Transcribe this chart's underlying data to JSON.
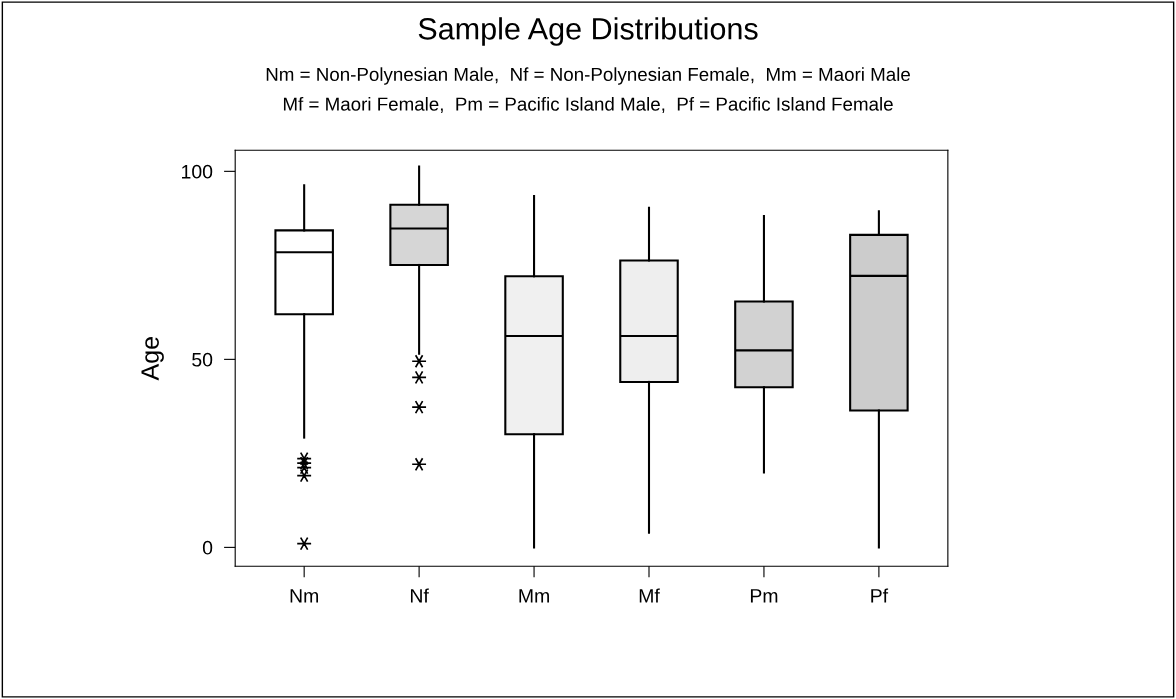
{
  "chart_data": {
    "type": "box",
    "title": "Sample Age Distributions",
    "subtitle": "Nm = Non-Polynesian Male,  Nf = Non-Polynesian Female,  Mm = Maori Male\nMf = Maori Female,  Pm = Pacific Island Male,  Pf = Pacific Island Female",
    "ylabel": "Age",
    "categories": [
      "Nm",
      "Nf",
      "Mm",
      "Mf",
      "Pm",
      "Pf"
    ],
    "colors": [
      "#ffffff",
      "#d6d6d6",
      "#f0f0f0",
      "#eeeeee",
      "#d2d2d2",
      "#cccccc"
    ],
    "boxes": [
      {
        "low": 29.2,
        "q1": 62,
        "median": 78.5,
        "q3": 84.3,
        "high": 96.3,
        "outliers": [
          23.6,
          22.4,
          21.2,
          19.1,
          1
        ]
      },
      {
        "low": 51.5,
        "q1": 75.1,
        "median": 84.8,
        "q3": 91.1,
        "high": 101.3,
        "outliers": [
          49.5,
          45.2,
          37.3,
          22.1
        ]
      },
      {
        "low": 0,
        "q1": 30.1,
        "median": 56.2,
        "q3": 72.1,
        "high": 93.4
      },
      {
        "low": 3.9,
        "q1": 44,
        "median": 56.2,
        "q3": 76.3,
        "high": 90.3
      },
      {
        "low": 19.9,
        "q1": 42.6,
        "median": 52.4,
        "q3": 65.4,
        "high": 88.1
      },
      {
        "low": 0,
        "q1": 36.4,
        "median": 72.2,
        "q3": 83.1,
        "high": 89.4
      }
    ],
    "ylim": [
      -5,
      105.6
    ],
    "yticks": [
      0,
      50,
      100
    ],
    "grid": false,
    "legend": false
  }
}
